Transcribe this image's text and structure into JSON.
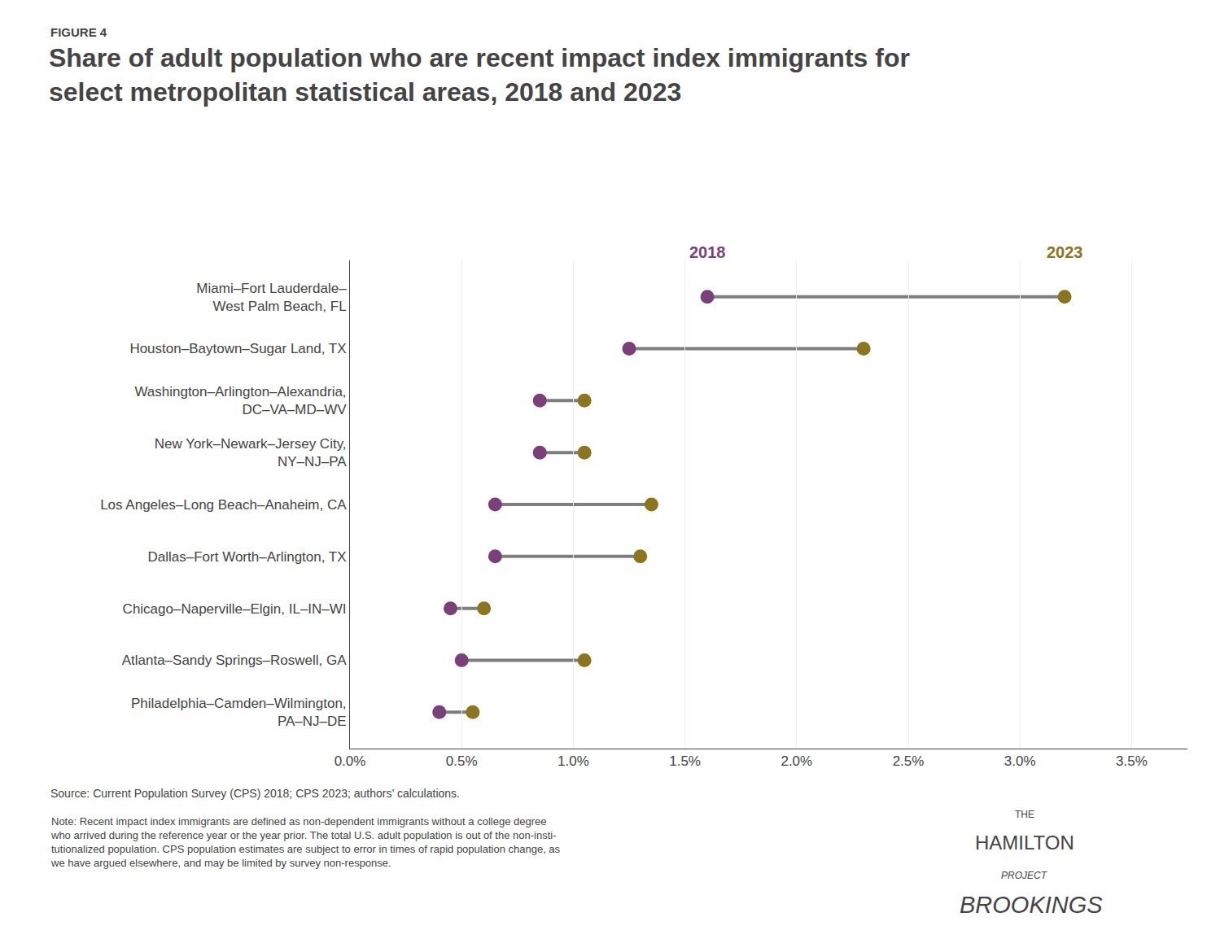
{
  "chart_data": {
    "type": "dumbbell",
    "title": "Share of adult population who are recent impact index immigrants for\nselect metropolitan statistical areas, 2018 and 2023",
    "categories": [
      "Miami–Fort Lauderdale–\nWest Palm Beach, FL",
      "Houston–Baytown–Sugar Land, TX",
      "Washington–Arlington–Alexandria,\nDC–VA–MD–WV",
      "New York–Newark–Jersey City,\nNY–NJ–PA",
      "Los Angeles–Long Beach–Anaheim, CA",
      "Dallas–Fort Worth–Arlington, TX",
      "Chicago–Naperville–Elgin, IL–IN–WI",
      "Atlanta–Sandy Springs–Roswell, GA",
      "Philadelphia–Camden–Wilmington,\nPA–NJ–DE"
    ],
    "series": [
      {
        "name": "2018",
        "color": "#7B3F7A",
        "values": [
          1.6,
          1.25,
          0.85,
          0.85,
          0.65,
          0.65,
          0.45,
          0.5,
          0.4
        ]
      },
      {
        "name": "2023",
        "color": "#8B7520",
        "values": [
          3.2,
          2.3,
          1.05,
          1.05,
          1.35,
          1.3,
          0.6,
          1.05,
          0.55
        ]
      }
    ],
    "xlim": [
      0.0,
      3.75
    ],
    "xticks": [
      {
        "value": 0.0,
        "label": "0.0%"
      },
      {
        "value": 0.5,
        "label": "0.5%"
      },
      {
        "value": 1.0,
        "label": "1.0%"
      },
      {
        "value": 1.5,
        "label": "1.5%"
      },
      {
        "value": 2.0,
        "label": "2.0%"
      },
      {
        "value": 2.5,
        "label": "2.5%"
      },
      {
        "value": 3.0,
        "label": "3.0%"
      },
      {
        "value": 3.5,
        "label": "3.5%"
      }
    ],
    "grid": true,
    "annotations": [
      "FIGURE 4",
      "Source: Current Population Survey (CPS) 2018; CPS 2023; authors’ calculations.",
      "Note: Recent impact index immigrants are defined as non-dependent immigrants without a college degree\nwho arrived during the reference year or the year prior. The total U.S. adult population is out of the non-insti-\ntutionalized population. CPS population estimates are subject to error in times of rapid population change, as\nwe have argued elsewhere, and may be limited by survey non-response.",
      "THE",
      "HAMILTON",
      "PROJECT",
      "BROOKINGS"
    ]
  }
}
